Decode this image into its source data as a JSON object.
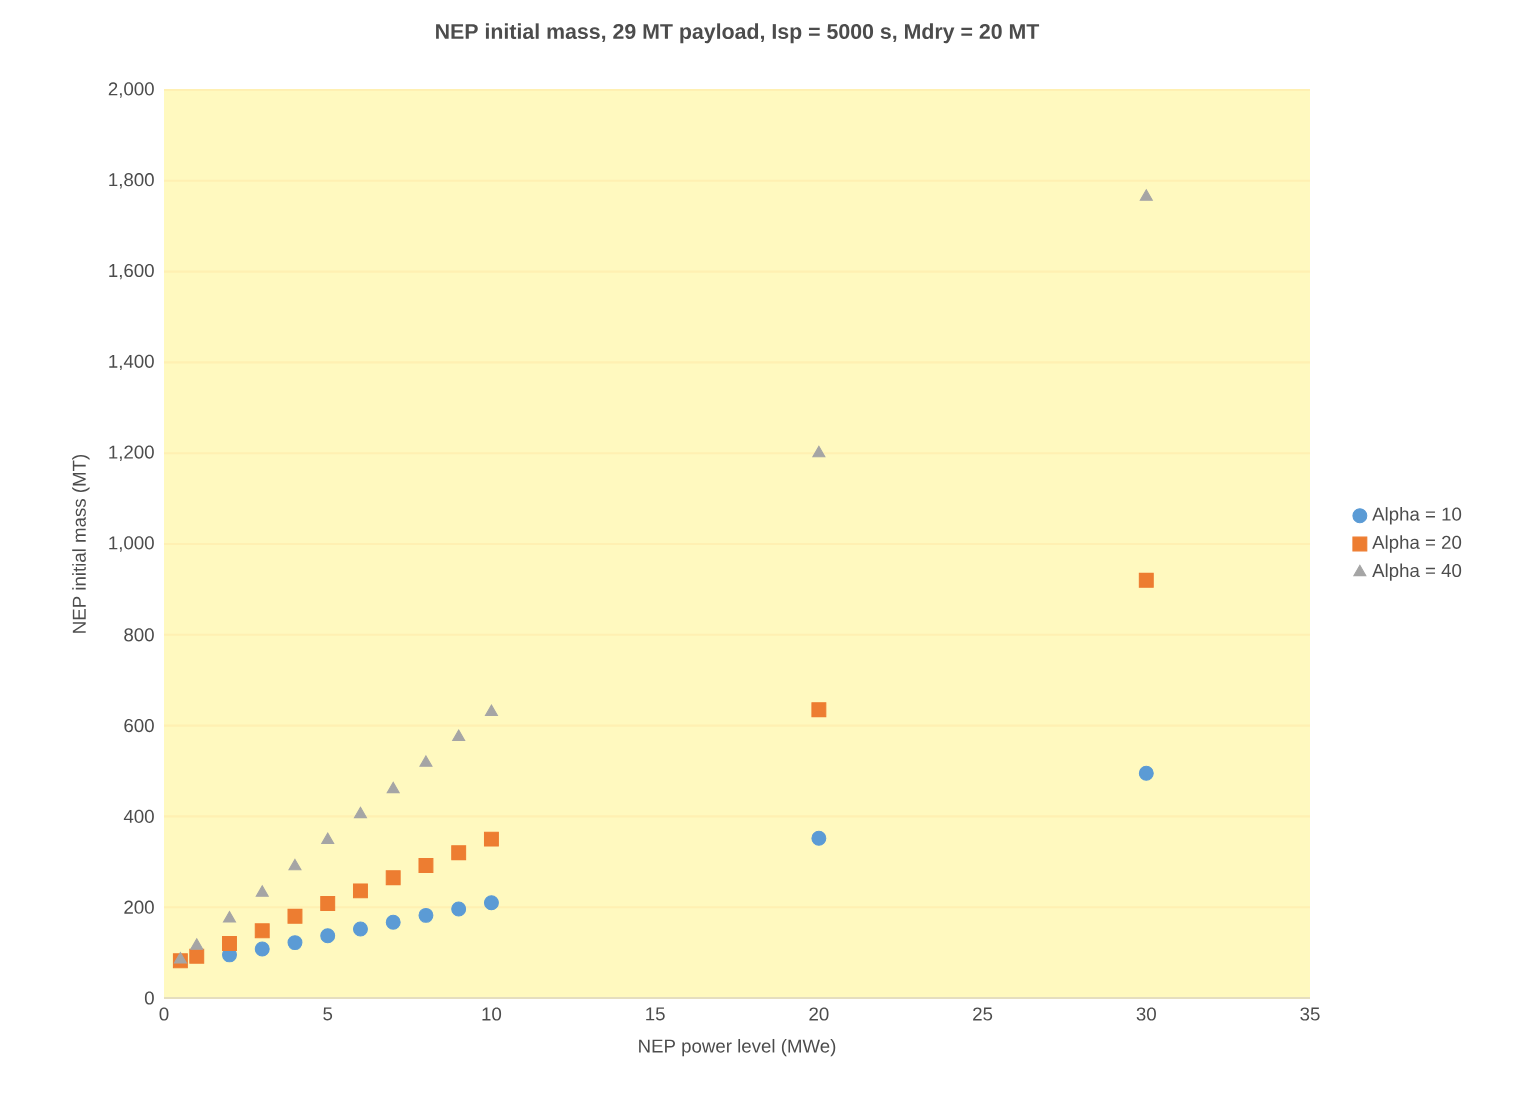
{
  "chart_data": {
    "type": "scatter",
    "title": "NEP initial mass, 29 MT payload, Isp = 5000 s, Mdry = 20 MT",
    "xlabel": "NEP power level (MWe)",
    "ylabel": "NEP initial mass (MT)",
    "x": [
      0.5,
      1,
      2,
      3,
      4,
      5,
      6,
      7,
      8,
      9,
      10,
      20,
      30
    ],
    "series": [
      {
        "name": "Alpha = 10",
        "color": "#5b9bd5",
        "marker": "circle",
        "values": [
          null,
          null,
          95,
          108,
          122,
          137,
          152,
          167,
          182,
          196,
          210,
          352,
          495
        ]
      },
      {
        "name": "Alpha = 20",
        "color": "#ed7d31",
        "marker": "square",
        "values": [
          82,
          92,
          120,
          148,
          180,
          208,
          236,
          265,
          292,
          320,
          350,
          635,
          920
        ]
      },
      {
        "name": "Alpha = 40",
        "color": "#a5a5a5",
        "marker": "triangle",
        "values": [
          85,
          115,
          175,
          232,
          290,
          348,
          405,
          460,
          518,
          575,
          630,
          1200,
          1765
        ]
      }
    ],
    "xlim": [
      0,
      35
    ],
    "xticks": [
      0,
      5,
      10,
      15,
      20,
      25,
      30,
      35
    ],
    "ylim": [
      0,
      2000
    ],
    "yticks": [
      0,
      200,
      400,
      600,
      800,
      {
        "value": 1000,
        "label": "1,000"
      },
      {
        "value": 1200,
        "label": "1,200"
      },
      {
        "value": 1400,
        "label": "1,400"
      },
      {
        "value": 1600,
        "label": "1,600"
      },
      {
        "value": 1800,
        "label": "1,800"
      },
      {
        "value": 2000,
        "label": "2,000"
      }
    ],
    "grid": "y",
    "legend": "right"
  }
}
